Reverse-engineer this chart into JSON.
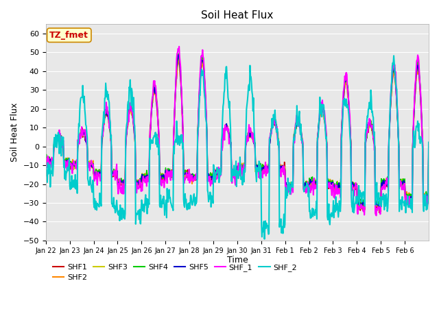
{
  "title": "Soil Heat Flux",
  "xlabel": "Time",
  "ylabel": "Soil Heat Flux",
  "ylim": [
    -50,
    65
  ],
  "yticks": [
    -50,
    -40,
    -30,
    -20,
    -10,
    0,
    10,
    20,
    30,
    40,
    50,
    60
  ],
  "background_color": "#ffffff",
  "plot_bg_color": "#e8e8e8",
  "grid_color": "#ffffff",
  "series": {
    "SHF1": {
      "color": "#cc0000",
      "lw": 1.2
    },
    "SHF2": {
      "color": "#ff8800",
      "lw": 1.2
    },
    "SHF3": {
      "color": "#cccc00",
      "lw": 1.2
    },
    "SHF4": {
      "color": "#00cc00",
      "lw": 1.2
    },
    "SHF5": {
      "color": "#0000cc",
      "lw": 1.2
    },
    "SHF_1": {
      "color": "#ff00ff",
      "lw": 1.5
    },
    "SHF_2": {
      "color": "#00cccc",
      "lw": 1.5
    }
  },
  "xtick_labels": [
    "Jan 22",
    "Jan 23",
    "Jan 24",
    "Jan 25",
    "Jan 26",
    "Jan 27",
    "Jan 28",
    "Jan 29",
    "Jan 30",
    "Jan 31",
    "Feb 1",
    "Feb 2",
    "Feb 3",
    "Feb 4",
    "Feb 5",
    "Feb 6"
  ],
  "annotation_text": "TZ_fmet",
  "annotation_color": "#cc0000",
  "annotation_bg": "#ffffcc",
  "annotation_border": "#cc8800"
}
